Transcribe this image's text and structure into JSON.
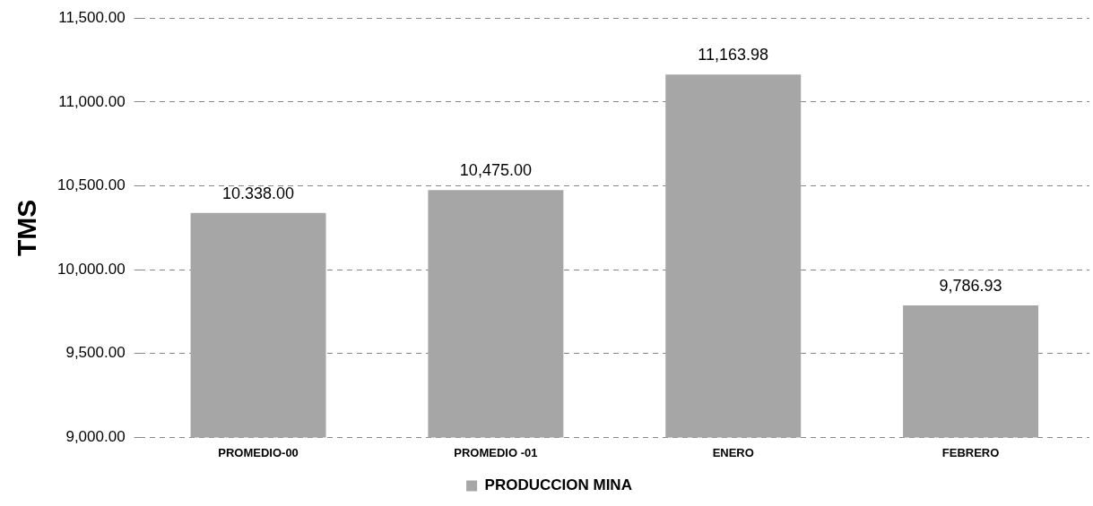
{
  "chart_data": {
    "type": "bar",
    "ylabel": "TMS",
    "categories": [
      "PROMEDIO-00",
      "PROMEDIO -01",
      "ENERO",
      "FEBRERO"
    ],
    "series": [
      {
        "name": "PRODUCCION MINA",
        "color": "#a6a6a6",
        "values": [
          10338,
          10475,
          11163.98,
          9786.93
        ],
        "value_labels": [
          "10.338.00",
          "10,475.00",
          "11,163.98",
          "9,786.93"
        ]
      }
    ],
    "ylim": [
      9000,
      11500
    ],
    "yticks": [
      {
        "value": 9000,
        "label": "9,000.00"
      },
      {
        "value": 9500,
        "label": "9,500.00"
      },
      {
        "value": 10000,
        "label": "10,000.00"
      },
      {
        "value": 10500,
        "label": "10,500.00"
      },
      {
        "value": 11000,
        "label": "11,000.00"
      },
      {
        "value": 11500,
        "label": "11,500.00"
      }
    ],
    "grid": "y",
    "legend": "bottom"
  }
}
